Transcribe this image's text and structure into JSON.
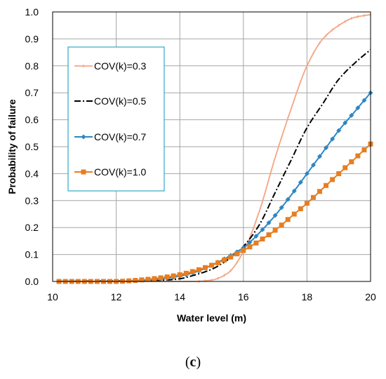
{
  "caption": {
    "open": "(",
    "letter": "c",
    "close": ")"
  },
  "colors": {
    "cov03": "#f4a582",
    "cov05": "#000000",
    "cov07": "#2e86c1",
    "cov10": "#e67e22",
    "grid": "#a6a6a6",
    "legend_border": "#31a9c5"
  },
  "chart_data": {
    "type": "line",
    "xlabel": "Water level (m)",
    "ylabel": "Probability of failure",
    "xlim": [
      10,
      20
    ],
    "ylim": [
      0,
      1
    ],
    "xticks": [
      "10",
      "12",
      "14",
      "16",
      "18",
      "20"
    ],
    "yticks": [
      "0.0",
      "0.1",
      "0.2",
      "0.3",
      "0.4",
      "0.5",
      "0.6",
      "0.7",
      "0.8",
      "0.9",
      "1.0"
    ],
    "grid": true,
    "legend_position": "upper-left",
    "series": [
      {
        "name": "COV(k)=0.3",
        "style": "solid-with-small-markers",
        "x": [
          10,
          14.5,
          15.0,
          15.5,
          16.0,
          16.5,
          17.0,
          17.5,
          18.0,
          18.5,
          19.0,
          19.5,
          20.0
        ],
        "y": [
          0.0,
          0.0,
          0.005,
          0.03,
          0.11,
          0.26,
          0.46,
          0.64,
          0.8,
          0.9,
          0.95,
          0.98,
          0.99
        ]
      },
      {
        "name": "COV(k)=0.5",
        "style": "dash-dot",
        "x": [
          10,
          13.5,
          14.0,
          14.5,
          15.0,
          15.5,
          16.0,
          16.5,
          17.0,
          17.5,
          18.0,
          18.5,
          19.0,
          19.5,
          20.0
        ],
        "y": [
          0.0,
          0.005,
          0.01,
          0.025,
          0.045,
          0.08,
          0.13,
          0.21,
          0.33,
          0.45,
          0.57,
          0.66,
          0.75,
          0.81,
          0.86
        ]
      },
      {
        "name": "COV(k)=0.7",
        "style": "solid-with-diamonds",
        "x": [
          10,
          12.0,
          12.5,
          13.0,
          13.5,
          14.0,
          14.5,
          15.0,
          15.5,
          16.0,
          16.5,
          17.0,
          17.5,
          18.0,
          18.5,
          19.0,
          19.5,
          20.0
        ],
        "y": [
          0.0,
          0.0,
          0.002,
          0.005,
          0.01,
          0.02,
          0.035,
          0.06,
          0.09,
          0.125,
          0.18,
          0.245,
          0.32,
          0.4,
          0.48,
          0.56,
          0.63,
          0.7
        ]
      },
      {
        "name": "COV(k)=1.0",
        "style": "solid-with-squares",
        "x": [
          10,
          11.0,
          12.0,
          12.5,
          13.0,
          13.5,
          14.0,
          14.5,
          15.0,
          15.5,
          16.0,
          16.5,
          17.0,
          17.5,
          18.0,
          18.5,
          19.0,
          19.5,
          20.0
        ],
        "y": [
          0.0,
          0.0,
          0.0,
          0.003,
          0.008,
          0.015,
          0.025,
          0.04,
          0.06,
          0.085,
          0.115,
          0.15,
          0.19,
          0.24,
          0.29,
          0.345,
          0.4,
          0.455,
          0.51
        ]
      }
    ]
  }
}
